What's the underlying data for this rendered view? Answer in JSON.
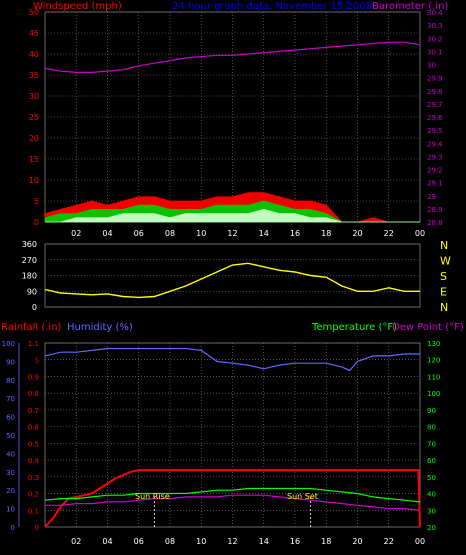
{
  "header": {
    "windspeed_label": "Windspeed (mph)",
    "title": "24 hour graph data.  November 15 2008",
    "barometer_label": "Barometer (.in)"
  },
  "colors": {
    "background": "#000000",
    "grid": "#808080",
    "wind_gust": "#ff0000",
    "wind_avg": "#00cc00",
    "wind_low": "#ccffcc",
    "barometer": "#cc00cc",
    "direction": "#ffff00",
    "rain": "#ff0000",
    "humidity": "#6666ff",
    "temperature": "#00ff00",
    "dewpoint": "#cc00cc",
    "title": "#0000ff",
    "marker": "#ffffff"
  },
  "time_ticks": [
    "02",
    "04",
    "06",
    "08",
    "10",
    "12",
    "14",
    "16",
    "18",
    "20",
    "22",
    "00"
  ],
  "direction_letters": [
    "N",
    "W",
    "S",
    "E",
    "N"
  ],
  "bottom_labels": {
    "rainfall": "Rainfall (.in)",
    "humidity": "Humidity (%)",
    "temperature": "Temperature (°F)",
    "dewpoint": "Dew Point (°F)"
  },
  "annotations": {
    "sunrise": "Sun Rise",
    "sunset": "Sun Set"
  },
  "chart_data": [
    {
      "type": "line",
      "name_hint": "wind-barometer",
      "x_unit": "hours",
      "xlim": [
        0,
        24
      ],
      "ylabel_left": "Windspeed (mph)",
      "ylim_left": [
        0,
        50
      ],
      "ticks_left": [
        "0",
        "5",
        "10",
        "15",
        "20",
        "25",
        "30",
        "35",
        "40",
        "45",
        "50"
      ],
      "ylabel_right": "Barometer (.in)",
      "ylim_right": [
        28.8,
        30.4
      ],
      "ticks_right": [
        "28.8",
        "28.9",
        "29",
        "29.1",
        "29.2",
        "29.3",
        "29.4",
        "29.5",
        "29.6",
        "29.7",
        "29.8",
        "29.9",
        "30",
        "30.1",
        "30.2",
        "30.3",
        "30.4"
      ],
      "series": [
        {
          "name": "Barometer (.in)",
          "axis": "right",
          "x": [
            0,
            1,
            2,
            3,
            4,
            5,
            6,
            7,
            8,
            9,
            10,
            11,
            12,
            13,
            14,
            15,
            16,
            17,
            18,
            19,
            20,
            21,
            22,
            23,
            24
          ],
          "values": [
            29.97,
            29.95,
            29.94,
            29.94,
            29.95,
            29.96,
            29.99,
            30.01,
            30.03,
            30.05,
            30.06,
            30.07,
            30.07,
            30.08,
            30.09,
            30.1,
            30.11,
            30.12,
            30.13,
            30.14,
            30.15,
            30.16,
            30.17,
            30.17,
            30.15
          ]
        },
        {
          "name": "gust",
          "axis": "left",
          "x": [
            0,
            1,
            2,
            3,
            4,
            5,
            6,
            7,
            8,
            9,
            10,
            11,
            12,
            13,
            14,
            15,
            16,
            17,
            18,
            19,
            20,
            21,
            22,
            23,
            24
          ],
          "values": [
            2,
            3,
            4,
            5,
            4,
            5,
            6,
            6,
            5,
            5,
            5,
            6,
            6,
            7,
            7,
            6,
            5,
            5,
            4,
            0,
            0,
            1,
            0,
            0,
            0
          ]
        },
        {
          "name": "average",
          "axis": "left",
          "x": [
            0,
            1,
            2,
            3,
            4,
            5,
            6,
            7,
            8,
            9,
            10,
            11,
            12,
            13,
            14,
            15,
            16,
            17,
            18,
            19,
            20,
            21,
            22,
            23,
            24
          ],
          "values": [
            1,
            2,
            2,
            3,
            3,
            3,
            4,
            4,
            3,
            3,
            3,
            4,
            4,
            4,
            5,
            4,
            3,
            3,
            2,
            0,
            0,
            0,
            0,
            0,
            0
          ]
        },
        {
          "name": "low",
          "axis": "left",
          "x": [
            0,
            1,
            2,
            3,
            4,
            5,
            6,
            7,
            8,
            9,
            10,
            11,
            12,
            13,
            14,
            15,
            16,
            17,
            18,
            19,
            20,
            21,
            22,
            23,
            24
          ],
          "values": [
            0,
            0,
            1,
            1,
            1,
            2,
            2,
            2,
            1,
            2,
            2,
            2,
            2,
            2,
            3,
            2,
            2,
            1,
            1,
            0,
            0,
            0,
            0,
            0,
            0
          ]
        }
      ]
    },
    {
      "type": "line",
      "name_hint": "wind-direction",
      "x_unit": "hours",
      "xlim": [
        0,
        24
      ],
      "ylim": [
        0,
        360
      ],
      "ticks": [
        "0",
        "90",
        "180",
        "270",
        "360"
      ],
      "series": [
        {
          "name": "direction",
          "x": [
            0,
            1,
            2,
            3,
            4,
            5,
            6,
            7,
            8,
            9,
            10,
            11,
            12,
            13,
            14,
            15,
            16,
            17,
            18,
            19,
            20,
            21,
            22,
            23,
            24
          ],
          "values": [
            100,
            80,
            75,
            70,
            75,
            60,
            55,
            60,
            90,
            120,
            160,
            200,
            240,
            250,
            230,
            210,
            200,
            180,
            170,
            120,
            90,
            90,
            110,
            90,
            90
          ]
        }
      ]
    },
    {
      "type": "line",
      "name_hint": "rain-humidity-temperature",
      "x_unit": "hours",
      "xlim": [
        0,
        24
      ],
      "ylabel_left_rain": "Rainfall (.in)",
      "ylim_rain": [
        0,
        1.1
      ],
      "ticks_rain": [
        "0",
        "0.1",
        "0.2",
        "0.3",
        "0.4",
        "0.5",
        "0.6",
        "0.7",
        "0.8",
        "0.9",
        "1",
        "1.1"
      ],
      "ylabel_left_humidity": "Humidity (%)",
      "ylim_humidity": [
        0,
        100
      ],
      "ticks_humidity": [
        "0",
        "10",
        "20",
        "30",
        "40",
        "50",
        "60",
        "70",
        "80",
        "90",
        "100"
      ],
      "ylabel_right": "Temperature (°F)Dew Point (°F)",
      "ylim_right": [
        20,
        130
      ],
      "ticks_right": [
        "20",
        "30",
        "40",
        "50",
        "60",
        "70",
        "80",
        "90",
        "100",
        "110",
        "120",
        "130"
      ],
      "series": [
        {
          "name": "Rainfall (.in)",
          "axis": "rain",
          "x": [
            0,
            0.5,
            1,
            1.5,
            2,
            2.5,
            3,
            3.5,
            4,
            4.5,
            5,
            5.5,
            6,
            7,
            8,
            9,
            10,
            11,
            12,
            13,
            14,
            15,
            16,
            17,
            18,
            19,
            20,
            21,
            22,
            23,
            23.9,
            24
          ],
          "values": [
            0,
            0.05,
            0.12,
            0.17,
            0.18,
            0.19,
            0.2,
            0.23,
            0.26,
            0.29,
            0.31,
            0.33,
            0.34,
            0.34,
            0.34,
            0.34,
            0.34,
            0.34,
            0.34,
            0.34,
            0.34,
            0.34,
            0.34,
            0.34,
            0.34,
            0.34,
            0.34,
            0.34,
            0.34,
            0.34,
            0.34,
            0
          ]
        },
        {
          "name": "Humidity (%)",
          "axis": "humidity",
          "x": [
            0,
            1,
            2,
            3,
            4,
            5,
            6,
            7,
            8,
            9,
            10,
            10.5,
            11,
            12,
            13,
            14,
            15,
            16,
            17,
            18,
            19,
            19.5,
            20,
            21,
            22,
            23,
            24
          ],
          "values": [
            93,
            95,
            95,
            96,
            97,
            97,
            97,
            97,
            97,
            97,
            96,
            93,
            90,
            89,
            88,
            86,
            88,
            89,
            89,
            89,
            87,
            85,
            90,
            93,
            93,
            94,
            94
          ]
        },
        {
          "name": "Temperature (°F)",
          "axis": "right",
          "x": [
            0,
            1,
            2,
            3,
            4,
            5,
            6,
            7,
            8,
            9,
            10,
            11,
            12,
            13,
            14,
            15,
            16,
            17,
            18,
            19,
            20,
            21,
            22,
            23,
            24
          ],
          "values": [
            36,
            37,
            37,
            38,
            39,
            39,
            40,
            40,
            40,
            40,
            41,
            42,
            42,
            43,
            43,
            43,
            43,
            43,
            42,
            41,
            40,
            38,
            37,
            36,
            35
          ]
        },
        {
          "name": "Dew Point (°F)",
          "axis": "right",
          "x": [
            0,
            1,
            2,
            3,
            4,
            5,
            6,
            7,
            8,
            9,
            10,
            11,
            12,
            13,
            14,
            15,
            16,
            17,
            18,
            19,
            20,
            21,
            22,
            23,
            24
          ],
          "values": [
            33,
            33,
            34,
            34,
            35,
            35,
            36,
            37,
            37,
            38,
            38,
            38,
            39,
            39,
            39,
            38,
            37,
            36,
            35,
            34,
            33,
            32,
            31,
            31,
            30
          ]
        }
      ]
    }
  ]
}
